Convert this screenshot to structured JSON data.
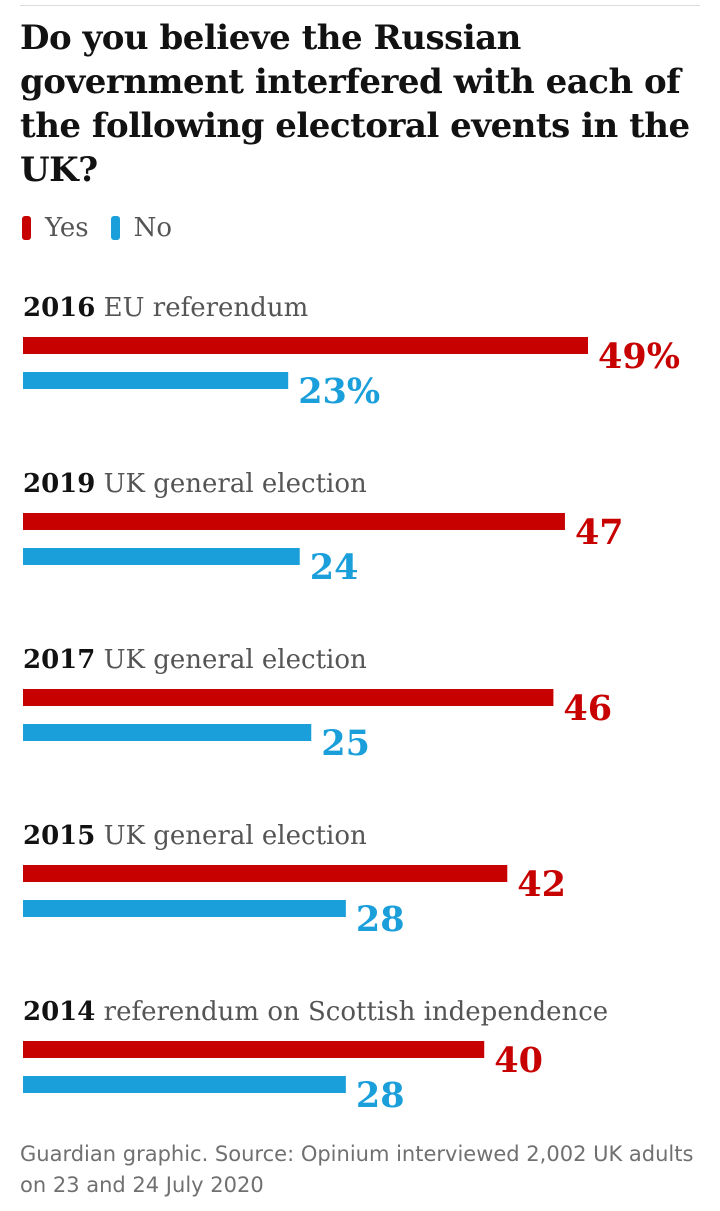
{
  "title": "Do you believe the Russian government interfered with each of the following electoral events in the UK?",
  "legend": [
    {
      "label": "Yes",
      "color": "#c70000"
    },
    {
      "label": "No",
      "color": "#1a9fdb"
    }
  ],
  "chart_data": {
    "type": "bar",
    "orientation": "horizontal",
    "title": "Do you believe the Russian government interfered with each of the following electoral events in the UK?",
    "categories": [
      {
        "year": "2016",
        "event": "EU referendum"
      },
      {
        "year": "2019",
        "event": "UK general election"
      },
      {
        "year": "2017",
        "event": "UK general election"
      },
      {
        "year": "2015",
        "event": "UK general election"
      },
      {
        "year": "2014",
        "event": "referendum on Scottish independence"
      }
    ],
    "series": [
      {
        "name": "Yes",
        "color": "#c70000",
        "values": [
          49,
          47,
          46,
          42,
          40
        ],
        "labels": [
          "49%",
          "47",
          "46",
          "42",
          "40"
        ]
      },
      {
        "name": "No",
        "color": "#1a9fdb",
        "values": [
          23,
          24,
          25,
          28,
          28
        ],
        "labels": [
          "23%",
          "24",
          "25",
          "28",
          "28"
        ]
      }
    ],
    "unit": "%",
    "xlim": [
      0,
      49
    ],
    "grid": false,
    "legend_position": "top-left"
  },
  "footer": "Guardian graphic. Source: Opinium interviewed 2,002 UK adults on 23 and 24 July 2020"
}
